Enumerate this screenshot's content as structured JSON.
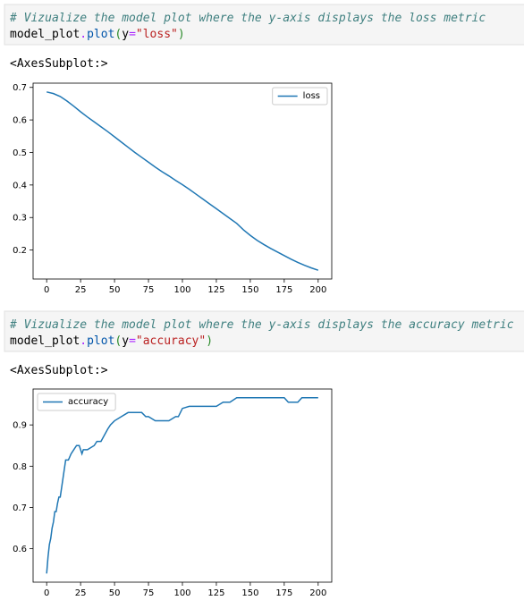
{
  "cells": [
    {
      "comment": "# Vizualize the model plot where the y-axis displays the loss metric",
      "code_tokens": [
        "model_plot",
        ".",
        "plot",
        "(",
        "y",
        "=",
        "\"loss\"",
        ")"
      ],
      "output": "<AxesSubplot:>"
    },
    {
      "comment": "# Vizualize the model plot where the y-axis displays the accuracy metric",
      "code_tokens": [
        "model_plot",
        ".",
        "plot",
        "(",
        "y",
        "=",
        "\"accuracy\"",
        ")"
      ],
      "output": "<AxesSubplot:>"
    }
  ],
  "chart_data": [
    {
      "type": "line",
      "series": [
        {
          "name": "loss",
          "color": "#1f77b4",
          "x": [
            0,
            5,
            10,
            15,
            20,
            25,
            30,
            35,
            40,
            45,
            50,
            55,
            60,
            65,
            70,
            75,
            80,
            85,
            90,
            95,
            100,
            105,
            110,
            115,
            120,
            125,
            130,
            135,
            140,
            145,
            150,
            155,
            160,
            165,
            170,
            175,
            180,
            185,
            190,
            195,
            200
          ],
          "values": [
            0.686,
            0.681,
            0.672,
            0.658,
            0.642,
            0.625,
            0.609,
            0.594,
            0.579,
            0.564,
            0.548,
            0.532,
            0.516,
            0.5,
            0.485,
            0.47,
            0.455,
            0.441,
            0.428,
            0.414,
            0.401,
            0.387,
            0.372,
            0.357,
            0.342,
            0.327,
            0.312,
            0.297,
            0.282,
            0.262,
            0.245,
            0.23,
            0.217,
            0.205,
            0.194,
            0.183,
            0.172,
            0.162,
            0.153,
            0.145,
            0.138
          ]
        }
      ],
      "xlim": [
        -10,
        210
      ],
      "xticks": [
        0,
        25,
        50,
        75,
        100,
        125,
        150,
        175,
        200
      ],
      "ylim": [
        0.111,
        0.713
      ],
      "yticks": [
        0.2,
        0.3,
        0.4,
        0.5,
        0.6,
        0.7
      ],
      "legend": "upper right"
    },
    {
      "type": "line",
      "series": [
        {
          "name": "accuracy",
          "color": "#1f77b4",
          "x": [
            0,
            1,
            2,
            3,
            4,
            5,
            6,
            7,
            8,
            9,
            10,
            12,
            14,
            16,
            18,
            20,
            22,
            24,
            26,
            27,
            28,
            30,
            35,
            37,
            40,
            45,
            47,
            50,
            55,
            60,
            65,
            70,
            73,
            75,
            80,
            85,
            90,
            95,
            97,
            100,
            105,
            110,
            115,
            120,
            125,
            130,
            135,
            140,
            145,
            150,
            155,
            160,
            165,
            170,
            175,
            178,
            180,
            185,
            188,
            190,
            195,
            200
          ],
          "values": [
            0.54,
            0.58,
            0.61,
            0.625,
            0.65,
            0.665,
            0.69,
            0.69,
            0.71,
            0.725,
            0.725,
            0.77,
            0.815,
            0.815,
            0.83,
            0.84,
            0.85,
            0.85,
            0.83,
            0.84,
            0.84,
            0.84,
            0.85,
            0.86,
            0.86,
            0.89,
            0.9,
            0.91,
            0.92,
            0.93,
            0.93,
            0.93,
            0.92,
            0.92,
            0.91,
            0.91,
            0.91,
            0.92,
            0.92,
            0.94,
            0.945,
            0.945,
            0.945,
            0.945,
            0.945,
            0.955,
            0.955,
            0.966,
            0.966,
            0.966,
            0.966,
            0.966,
            0.966,
            0.966,
            0.966,
            0.955,
            0.955,
            0.955,
            0.966,
            0.966,
            0.966,
            0.966
          ]
        }
      ],
      "xlim": [
        -10,
        210
      ],
      "xticks": [
        0,
        25,
        50,
        75,
        100,
        125,
        150,
        175,
        200
      ],
      "ylim": [
        0.519,
        0.987
      ],
      "yticks": [
        0.6,
        0.7,
        0.8,
        0.9
      ],
      "legend": "upper left"
    }
  ]
}
